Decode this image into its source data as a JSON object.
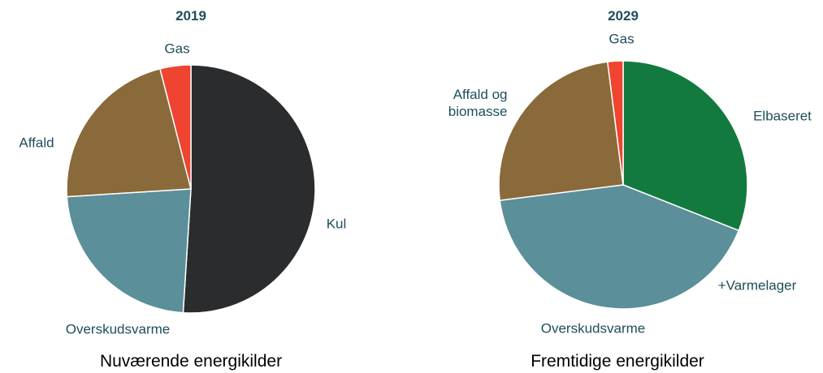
{
  "chart_data": [
    {
      "type": "pie",
      "title": "2019",
      "caption": "Nuværende energikilder",
      "categories": [
        "Kul",
        "Overskudsvarme",
        "Affald",
        "Gas"
      ],
      "values": [
        51,
        23,
        22,
        4
      ],
      "colors": [
        "#2b2c2e",
        "#5b8f9a",
        "#8a6a3a",
        "#ee4430"
      ]
    },
    {
      "type": "pie",
      "title": "2029",
      "caption": "Fremtidige energikilder",
      "categories": [
        "Elbaseret",
        "Overskudsvarme",
        "Affald og biomasse",
        "Gas"
      ],
      "values": [
        31,
        42,
        25,
        2
      ],
      "colors": [
        "#137a3f",
        "#5b8f9a",
        "#8a6a3a",
        "#ee4430"
      ],
      "annotation": "+Varmelager"
    }
  ]
}
